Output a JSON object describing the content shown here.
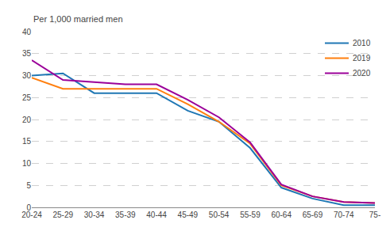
{
  "chart_data": {
    "type": "line",
    "ylabel": "Per 1,000 married men",
    "categories": [
      "20-24",
      "25-29",
      "30-34",
      "35-39",
      "40-44",
      "45-49",
      "50-54",
      "55-59",
      "60-64",
      "65-69",
      "70-74",
      "75-"
    ],
    "series": [
      {
        "name": "2010",
        "color": "#1f77b4",
        "values": [
          30.0,
          30.5,
          26.0,
          26.0,
          26.0,
          22.0,
          19.5,
          13.5,
          4.5,
          2.0,
          0.5,
          0.5
        ]
      },
      {
        "name": "2019",
        "color": "#ff7f0e",
        "values": [
          29.5,
          27.0,
          27.0,
          27.0,
          27.0,
          23.5,
          19.5,
          14.5,
          5.0,
          2.5,
          1.2,
          1.0
        ]
      },
      {
        "name": "2020",
        "color": "#9b0099",
        "values": [
          33.5,
          29.0,
          28.5,
          28.0,
          28.0,
          24.5,
          20.5,
          14.8,
          5.2,
          2.5,
          1.2,
          1.0
        ]
      }
    ],
    "ylim": [
      0,
      40
    ],
    "yticks": [
      0,
      5,
      10,
      15,
      20,
      25,
      30,
      35,
      40
    ],
    "grid": true,
    "legend": "upper right"
  }
}
